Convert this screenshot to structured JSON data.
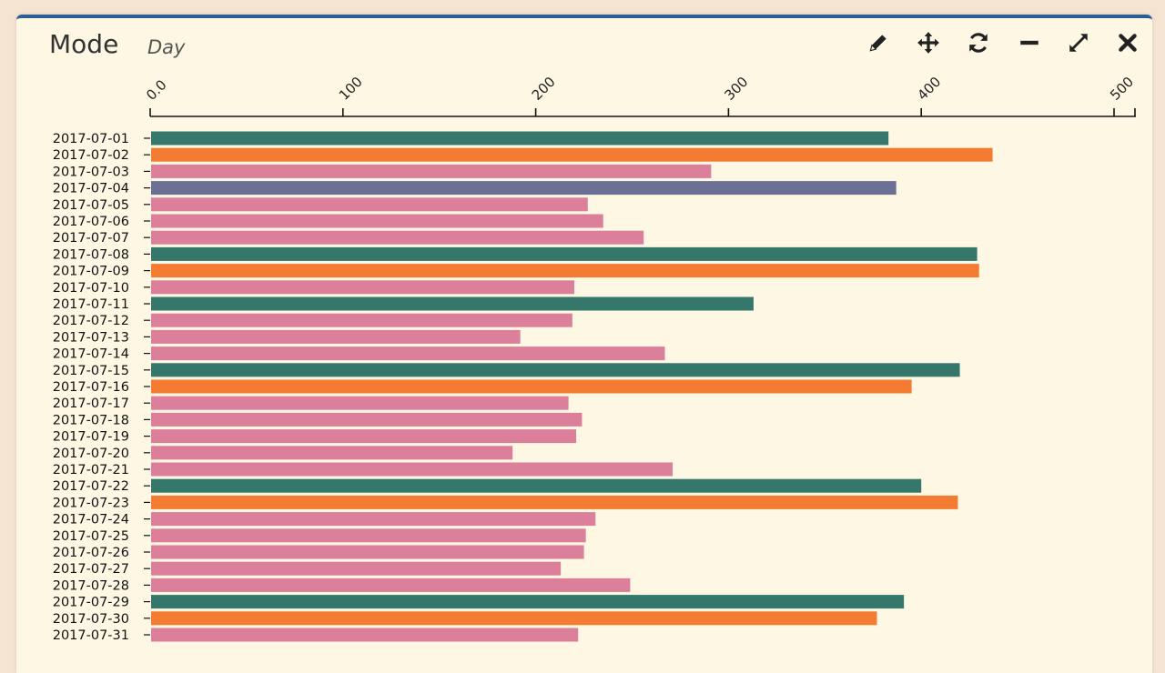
{
  "header": {
    "title": "Mode",
    "subtitle": "Day"
  },
  "toolbar": {
    "items": [
      {
        "name": "edit",
        "icon": "pencil-icon"
      },
      {
        "name": "move",
        "icon": "move-icon"
      },
      {
        "name": "refresh",
        "icon": "refresh-icon"
      },
      {
        "name": "minimize",
        "icon": "minus-icon"
      },
      {
        "name": "expand",
        "icon": "expand-icon"
      },
      {
        "name": "close",
        "icon": "close-icon"
      }
    ]
  },
  "colors": {
    "weekday": "#dc7f9b",
    "sunday": "#f37c32",
    "saturday": "#35776a",
    "holiday": "#6b7094",
    "axis": "#111111",
    "border": "#2c5f95"
  },
  "chart_data": {
    "type": "bar",
    "orientation": "horizontal",
    "title": "Mode",
    "subtitle": "Day",
    "xlim": [
      0,
      510
    ],
    "ticks": [
      0,
      100,
      200,
      300,
      400,
      500
    ],
    "tick_labels": [
      "0.0",
      "100",
      "200",
      "300",
      "400",
      "500"
    ],
    "categories": [
      "2017-07-01",
      "2017-07-02",
      "2017-07-03",
      "2017-07-04",
      "2017-07-05",
      "2017-07-06",
      "2017-07-07",
      "2017-07-08",
      "2017-07-09",
      "2017-07-10",
      "2017-07-11",
      "2017-07-12",
      "2017-07-13",
      "2017-07-14",
      "2017-07-15",
      "2017-07-16",
      "2017-07-17",
      "2017-07-18",
      "2017-07-19",
      "2017-07-20",
      "2017-07-21",
      "2017-07-22",
      "2017-07-23",
      "2017-07-24",
      "2017-07-25",
      "2017-07-26",
      "2017-07-27",
      "2017-07-28",
      "2017-07-29",
      "2017-07-30",
      "2017-07-31"
    ],
    "values": [
      383,
      437,
      291,
      387,
      227,
      235,
      256,
      429,
      430,
      220,
      313,
      219,
      192,
      267,
      420,
      395,
      217,
      224,
      221,
      188,
      271,
      400,
      419,
      231,
      226,
      225,
      213,
      249,
      391,
      377,
      222
    ],
    "bar_colors": [
      "saturday",
      "sunday",
      "weekday",
      "holiday",
      "weekday",
      "weekday",
      "weekday",
      "saturday",
      "sunday",
      "weekday",
      "saturday",
      "weekday",
      "weekday",
      "weekday",
      "saturday",
      "sunday",
      "weekday",
      "weekday",
      "weekday",
      "weekday",
      "weekday",
      "saturday",
      "sunday",
      "weekday",
      "weekday",
      "weekday",
      "weekday",
      "weekday",
      "saturday",
      "sunday",
      "weekday"
    ]
  }
}
